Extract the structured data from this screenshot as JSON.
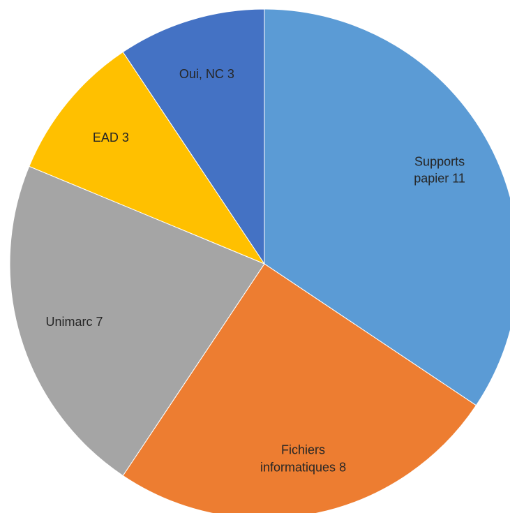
{
  "chart_data": {
    "type": "pie",
    "categories": [
      "Supports papier",
      "Fichiers informatiques",
      "Unimarc",
      "EAD",
      "Oui, NC"
    ],
    "values": [
      11,
      8,
      7,
      3,
      3
    ],
    "colors": [
      "#5b9bd5",
      "#ed7d31",
      "#a5a5a5",
      "#ffc000",
      "#4472c4"
    ]
  }
}
